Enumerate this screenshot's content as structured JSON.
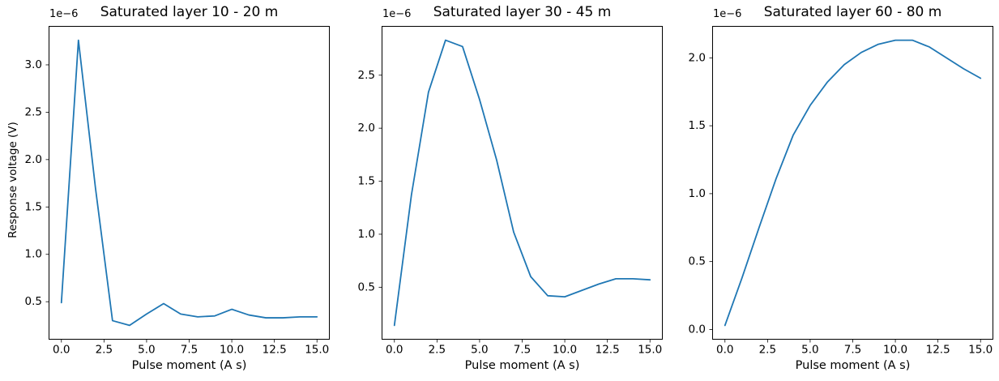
{
  "figure": {
    "background": "#ffffff",
    "line_color": "#1f77b4",
    "subplots": [
      {
        "title": "Saturated layer 10 - 20 m",
        "xlabel": "Pulse moment (A s)",
        "ylabel": "Response voltage (V)",
        "offset_text": "1e−6",
        "x_ticks": [
          0.0,
          2.5,
          5.0,
          7.5,
          10.0,
          12.5,
          15.0
        ],
        "y_ticks": [
          0.5,
          1.0,
          1.5,
          2.0,
          2.5,
          3.0
        ],
        "xlim": [
          -0.75,
          15.75
        ],
        "ylim": [
          0.0995,
          3.4105
        ],
        "x": [
          0,
          1,
          2,
          3,
          4,
          5,
          6,
          7,
          8,
          9,
          10,
          11,
          12,
          13,
          14,
          15
        ],
        "y_1e6": [
          0.49,
          3.26,
          1.7,
          0.3,
          0.25,
          0.37,
          0.48,
          0.37,
          0.34,
          0.35,
          0.42,
          0.36,
          0.33,
          0.33,
          0.34,
          0.34
        ]
      },
      {
        "title": "Saturated layer 30 - 45 m",
        "xlabel": "Pulse moment (A s)",
        "ylabel": "",
        "offset_text": "1e−6",
        "x_ticks": [
          0.0,
          2.5,
          5.0,
          7.5,
          10.0,
          12.5,
          15.0
        ],
        "y_ticks": [
          0.5,
          1.0,
          1.5,
          2.0,
          2.5
        ],
        "xlim": [
          -0.75,
          15.75
        ],
        "ylim": [
          0.0055,
          2.9645
        ],
        "x": [
          0,
          1,
          2,
          3,
          4,
          5,
          6,
          7,
          8,
          9,
          10,
          11,
          12,
          13,
          14,
          15
        ],
        "y_1e6": [
          0.14,
          1.37,
          2.34,
          2.83,
          2.77,
          2.27,
          1.7,
          1.02,
          0.6,
          0.42,
          0.41,
          0.47,
          0.53,
          0.58,
          0.58,
          0.57
        ]
      },
      {
        "title": "Saturated layer 60 - 80 m",
        "xlabel": "Pulse moment (A s)",
        "ylabel": "",
        "offset_text": "1e−6",
        "x_ticks": [
          0.0,
          2.5,
          5.0,
          7.5,
          10.0,
          12.5,
          15.0
        ],
        "y_ticks": [
          0.0,
          0.5,
          1.0,
          1.5,
          2.0
        ],
        "xlim": [
          -0.75,
          15.75
        ],
        "ylim": [
          -0.075,
          2.235
        ],
        "x": [
          0,
          1,
          2,
          3,
          4,
          5,
          6,
          7,
          8,
          9,
          10,
          11,
          12,
          13,
          14,
          15
        ],
        "y_1e6": [
          0.03,
          0.38,
          0.75,
          1.11,
          1.43,
          1.65,
          1.82,
          1.95,
          2.04,
          2.1,
          2.13,
          2.13,
          2.08,
          2.0,
          1.92,
          1.85
        ]
      }
    ]
  },
  "chart_data": [
    {
      "type": "line",
      "title": "Saturated layer 10 - 20 m",
      "xlabel": "Pulse moment (A s)",
      "ylabel": "Response voltage (V)",
      "y_offset_text": "1e−6",
      "y_unit_scale": 1e-06,
      "x": [
        0,
        1,
        2,
        3,
        4,
        5,
        6,
        7,
        8,
        9,
        10,
        11,
        12,
        13,
        14,
        15
      ],
      "y_1e6": [
        0.49,
        3.26,
        1.7,
        0.3,
        0.25,
        0.37,
        0.48,
        0.37,
        0.34,
        0.35,
        0.42,
        0.36,
        0.33,
        0.33,
        0.34,
        0.34
      ],
      "xlim": [
        -0.75,
        15.75
      ],
      "ylim_1e6": [
        0.0995,
        3.4105
      ],
      "x_ticks": [
        0.0,
        2.5,
        5.0,
        7.5,
        10.0,
        12.5,
        15.0
      ],
      "y_ticks_1e6": [
        0.5,
        1.0,
        1.5,
        2.0,
        2.5,
        3.0
      ],
      "grid": false,
      "legend": "none",
      "line_color": "#1f77b4"
    },
    {
      "type": "line",
      "title": "Saturated layer 30 - 45 m",
      "xlabel": "Pulse moment (A s)",
      "ylabel": "",
      "y_offset_text": "1e−6",
      "y_unit_scale": 1e-06,
      "x": [
        0,
        1,
        2,
        3,
        4,
        5,
        6,
        7,
        8,
        9,
        10,
        11,
        12,
        13,
        14,
        15
      ],
      "y_1e6": [
        0.14,
        1.37,
        2.34,
        2.83,
        2.77,
        2.27,
        1.7,
        1.02,
        0.6,
        0.42,
        0.41,
        0.47,
        0.53,
        0.58,
        0.58,
        0.57
      ],
      "xlim": [
        -0.75,
        15.75
      ],
      "ylim_1e6": [
        0.0055,
        2.9645
      ],
      "x_ticks": [
        0.0,
        2.5,
        5.0,
        7.5,
        10.0,
        12.5,
        15.0
      ],
      "y_ticks_1e6": [
        0.5,
        1.0,
        1.5,
        2.0,
        2.5
      ],
      "grid": false,
      "legend": "none",
      "line_color": "#1f77b4"
    },
    {
      "type": "line",
      "title": "Saturated layer 60 - 80 m",
      "xlabel": "Pulse moment (A s)",
      "ylabel": "",
      "y_offset_text": "1e−6",
      "y_unit_scale": 1e-06,
      "x": [
        0,
        1,
        2,
        3,
        4,
        5,
        6,
        7,
        8,
        9,
        10,
        11,
        12,
        13,
        14,
        15
      ],
      "y_1e6": [
        0.03,
        0.38,
        0.75,
        1.11,
        1.43,
        1.65,
        1.82,
        1.95,
        2.04,
        2.1,
        2.13,
        2.13,
        2.08,
        2.0,
        1.92,
        1.85
      ],
      "xlim": [
        -0.75,
        15.75
      ],
      "ylim_1e6": [
        -0.075,
        2.235
      ],
      "x_ticks": [
        0.0,
        2.5,
        5.0,
        7.5,
        10.0,
        12.5,
        15.0
      ],
      "y_ticks_1e6": [
        0.0,
        0.5,
        1.0,
        1.5,
        2.0
      ],
      "grid": false,
      "legend": "none",
      "line_color": "#1f77b4"
    }
  ]
}
